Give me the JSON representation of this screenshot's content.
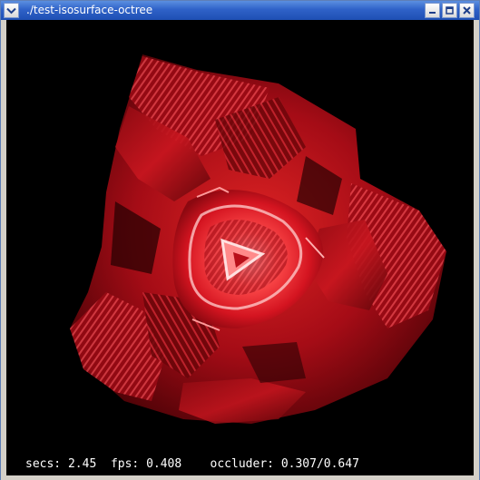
{
  "window": {
    "title": "./test-isosurface-octree",
    "menu_icon": "chevron-down-icon",
    "buttons": {
      "minimize_icon": "minimize-icon",
      "maximize_icon": "maximize-icon",
      "close_icon": "close-icon"
    },
    "colors": {
      "titlebar": "#2f62c8",
      "viewport_background": "#000000",
      "render_main": "#c0101a",
      "render_highlight": "#ff5a5a"
    }
  },
  "status": {
    "secs_label": "secs:",
    "secs_value": "2.45",
    "fps_label": "fps:",
    "fps_value": "0.408",
    "occluder_label": "occluder:",
    "occluder_value": "0.307/0.647"
  }
}
